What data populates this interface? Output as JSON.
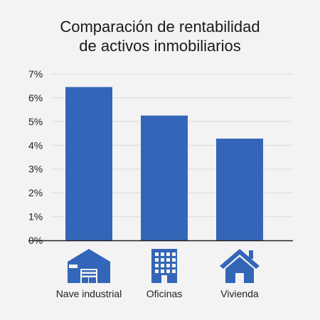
{
  "chart_data": {
    "type": "bar",
    "title_lines": [
      "Comparación de rentabilidad",
      "de activos inmobiliarios"
    ],
    "categories": [
      "Nave industrial",
      "Oficinas",
      "Vivienda"
    ],
    "category_icons": [
      "warehouse-icon",
      "office-building-icon",
      "house-icon"
    ],
    "values": [
      6.45,
      5.25,
      4.28
    ],
    "ylim": [
      0,
      7
    ],
    "yticks": [
      {
        "value": 0,
        "label": "0%"
      },
      {
        "value": 1,
        "label": "1%"
      },
      {
        "value": 2,
        "label": "2%"
      },
      {
        "value": 3,
        "label": "3%"
      },
      {
        "value": 4,
        "label": "4%"
      },
      {
        "value": 5,
        "label": "5%"
      },
      {
        "value": 6,
        "label": "6%"
      },
      {
        "value": 7,
        "label": "7%"
      }
    ],
    "grid": true,
    "bar_color": "#3366b8",
    "icon_color": "#3366b8",
    "grid_color": "#dcdcdc",
    "axis_color": "#222222"
  }
}
